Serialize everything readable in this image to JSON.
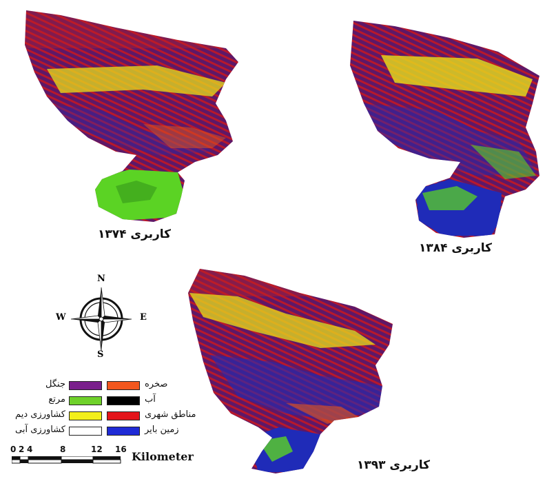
{
  "maps": [
    {
      "caption": "کاربری ۱۳۷۴"
    },
    {
      "caption": "کاربری ۱۳۸۴"
    },
    {
      "caption": "کاربری ۱۳۹۳"
    }
  ],
  "compass": {
    "north": "N",
    "south": "S",
    "east": "E",
    "west": "W"
  },
  "legend": {
    "items": [
      {
        "label": "جنگل",
        "color": "#7a1f8c"
      },
      {
        "label": "مرتع",
        "color": "#6fd12a"
      },
      {
        "label": "کشاورزی دیم",
        "color": "#f3ef1a"
      },
      {
        "label": "کشاورزی آبی",
        "color": "#ffffff"
      },
      {
        "label": "صخره",
        "color": "#f2571e"
      },
      {
        "label": "آب",
        "color": "#000000"
      },
      {
        "label": "مناطق شهری",
        "color": "#e4141a"
      },
      {
        "label": "زمین بایر",
        "color": "#1f2bd6"
      }
    ]
  },
  "scale": {
    "ticks": [
      "0",
      "2",
      "4",
      "8",
      "12",
      "16"
    ],
    "unit": "Kilometer"
  },
  "palette": {
    "forest": "#6a1a72",
    "bare": "#1f2bb8",
    "urban": "#b51628",
    "rock": "#e2571b",
    "dryfarm": "#f1e81a",
    "range": "#5bd324",
    "irrigated": "#ffffff",
    "water": "#000000"
  }
}
